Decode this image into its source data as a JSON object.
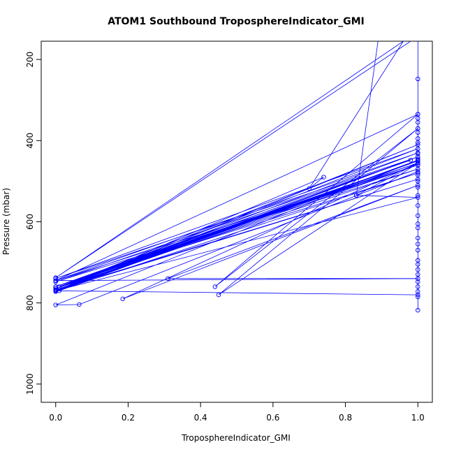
{
  "chart_data": {
    "type": "scatter",
    "title": "ATOM1 Southbound TroposphereIndicator_GMI",
    "xlabel": "TroposphereIndicator_GMI",
    "ylabel": "Pressure (mbar)",
    "xlim": [
      -0.04,
      1.04
    ],
    "ylim": [
      1045,
      155
    ],
    "y_reversed": true,
    "x_ticks": [
      0.0,
      0.2,
      0.4,
      0.6,
      0.8,
      1.0
    ],
    "x_tick_labels": [
      "0.0",
      "0.2",
      "0.4",
      "0.6",
      "0.8",
      "1.0"
    ],
    "y_ticks": [
      200,
      400,
      600,
      800,
      1000
    ],
    "y_tick_labels": [
      "200",
      "400",
      "600",
      "800",
      "1000"
    ],
    "grid": false,
    "series": [
      {
        "color": "#0000ff",
        "points": [
          [
            0.98,
            155
          ],
          [
            0.0,
            738
          ],
          [
            0.96,
            155
          ],
          [
            0.7,
            518
          ],
          [
            0.74,
            490
          ],
          [
            0.0,
            770
          ],
          [
            1.0,
            440
          ],
          [
            0.01,
            770
          ],
          [
            1.0,
            448
          ],
          [
            0.0,
            805
          ],
          [
            0.065,
            804
          ],
          [
            1.0,
            476
          ],
          [
            1.0,
            460
          ],
          [
            0.0,
            760
          ],
          [
            0.98,
            448
          ],
          [
            0.0,
            748
          ],
          [
            1.0,
            470
          ],
          [
            0.0,
            765
          ],
          [
            1.0,
            455
          ],
          [
            0.185,
            790
          ],
          [
            1.0,
            510
          ],
          [
            0.31,
            740
          ],
          [
            1.0,
            740
          ],
          [
            0.0,
            745
          ],
          [
            1.0,
            335
          ],
          [
            0.44,
            760
          ],
          [
            1.0,
            370
          ],
          [
            0.45,
            780
          ],
          [
            1.0,
            455
          ],
          [
            0.83,
            535
          ],
          [
            0.89,
            155
          ],
          [
            0.83,
            535
          ],
          [
            1.0,
            540
          ],
          [
            0.0,
            770
          ],
          [
            1.0,
            495
          ],
          [
            0.0,
            768
          ],
          [
            1.0,
            450
          ],
          [
            0.0,
            772
          ],
          [
            1.0,
            480
          ],
          [
            0.0,
            760
          ],
          [
            1.0,
            455
          ],
          [
            0.0,
            770
          ],
          [
            1.0,
            460
          ],
          [
            0.0,
            745
          ],
          [
            1.0,
            430
          ],
          [
            0.0,
            765
          ],
          [
            1.0,
            450
          ],
          [
            0.01,
            760
          ],
          [
            1.0,
            440
          ],
          [
            0.0,
            740
          ],
          [
            1.0,
            420
          ],
          [
            0.0,
            765
          ],
          [
            1.0,
            410
          ],
          [
            0.0,
            770
          ],
          [
            1.0,
            450
          ],
          [
            0.0,
            760
          ],
          [
            1.0,
            460
          ],
          [
            0.0,
            770
          ],
          [
            1.0,
            780
          ],
          [
            1.0,
            155
          ],
          [
            1.0,
            248
          ],
          [
            1.0,
            335
          ],
          [
            1.0,
            345
          ],
          [
            1.0,
            355
          ],
          [
            1.0,
            370
          ],
          [
            1.0,
            380
          ],
          [
            1.0,
            395
          ],
          [
            1.0,
            405
          ],
          [
            1.0,
            420
          ],
          [
            1.0,
            432
          ],
          [
            1.0,
            445
          ],
          [
            1.0,
            455
          ],
          [
            1.0,
            470
          ],
          [
            1.0,
            485
          ],
          [
            1.0,
            500
          ],
          [
            1.0,
            515
          ],
          [
            1.0,
            535
          ],
          [
            1.0,
            560
          ],
          [
            1.0,
            585
          ],
          [
            1.0,
            605
          ],
          [
            1.0,
            615
          ],
          [
            1.0,
            640
          ],
          [
            1.0,
            655
          ],
          [
            1.0,
            670
          ],
          [
            1.0,
            695
          ],
          [
            1.0,
            705
          ],
          [
            1.0,
            718
          ],
          [
            1.0,
            730
          ],
          [
            1.0,
            748
          ],
          [
            1.0,
            760
          ],
          [
            1.0,
            772
          ],
          [
            1.0,
            785
          ],
          [
            1.0,
            818
          ]
        ]
      }
    ]
  }
}
